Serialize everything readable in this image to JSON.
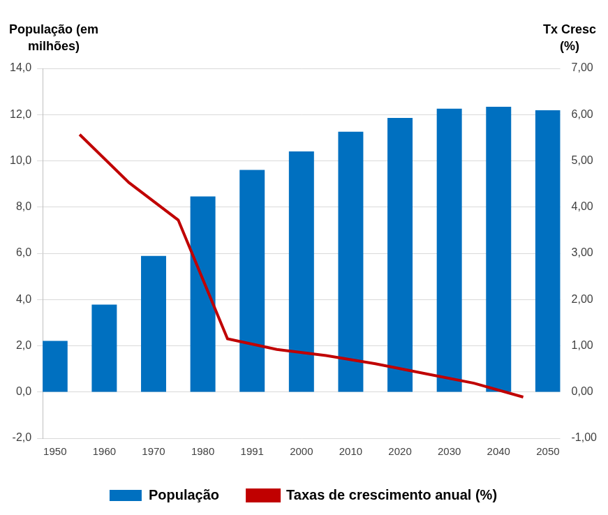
{
  "chart_data": {
    "type": "bar",
    "ylabel": "População (em milhões)",
    "y2label": "Tx Cresc (%)",
    "categories": [
      "1950",
      null,
      "1960",
      null,
      "1970",
      null,
      "1980",
      null,
      "1991",
      null,
      "2000",
      null,
      "2010",
      null,
      "2020",
      null,
      "2030",
      null,
      "2040",
      null,
      "2050"
    ],
    "ylim": [
      -2,
      14
    ],
    "yticks": [
      {
        "value": -2,
        "label": "-2,0"
      },
      {
        "value": 0,
        "label": "0,0"
      },
      {
        "value": 2,
        "label": "2,0"
      },
      {
        "value": 4,
        "label": "4,0"
      },
      {
        "value": 6,
        "label": "6,0"
      },
      {
        "value": 8,
        "label": "8,0"
      },
      {
        "value": 10,
        "label": "10,0"
      },
      {
        "value": 12,
        "label": "12,0"
      },
      {
        "value": 14,
        "label": "14,0"
      }
    ],
    "y2lim": [
      -1,
      7
    ],
    "y2ticks": [
      {
        "value": -1,
        "label": "-1,00"
      },
      {
        "value": 0,
        "label": "0,00"
      },
      {
        "value": 1,
        "label": "1,00"
      },
      {
        "value": 2,
        "label": "2,00"
      },
      {
        "value": 3,
        "label": "3,00"
      },
      {
        "value": 4,
        "label": "4,00"
      },
      {
        "value": 5,
        "label": "5,00"
      },
      {
        "value": 6,
        "label": "6,00"
      },
      {
        "value": 7,
        "label": "7,00"
      }
    ],
    "grid": true,
    "legend": "bottom",
    "series": [
      {
        "name": "População",
        "type": "bar",
        "color": "#0070c0",
        "values": [
          2.2,
          null,
          3.77,
          null,
          5.88,
          null,
          8.45,
          null,
          9.6,
          null,
          10.4,
          null,
          11.25,
          null,
          11.85,
          null,
          12.25,
          null,
          12.33,
          null,
          12.18
        ]
      },
      {
        "name": "Taxas de crescimento anual (%)",
        "type": "line",
        "color": "#c00000",
        "axis": "y2",
        "values": [
          null,
          5.57,
          null,
          4.53,
          null,
          3.72,
          null,
          1.15,
          null,
          0.92,
          null,
          0.79,
          null,
          0.61,
          null,
          0.4,
          null,
          0.19,
          null,
          -0.11,
          null
        ]
      }
    ]
  }
}
